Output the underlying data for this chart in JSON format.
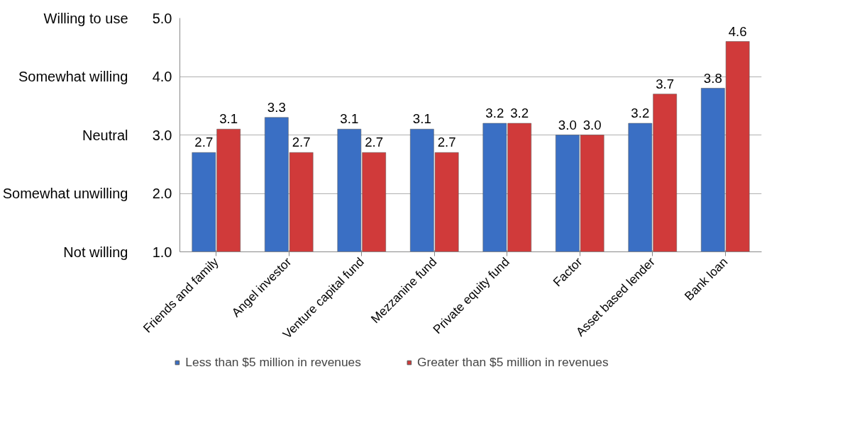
{
  "chart_data": {
    "type": "bar",
    "categories": [
      "Friends and family",
      "Angel investor",
      "Venture capital fund",
      "Mezzanine fund",
      "Private equity fund",
      "Factor",
      "Asset based lender",
      "Bank loan"
    ],
    "series": [
      {
        "name": "Less than $5 million in revenues",
        "color": "#3a6fc4",
        "values": [
          2.7,
          3.3,
          3.1,
          3.1,
          3.2,
          3.0,
          3.2,
          3.8
        ],
        "value_labels": [
          "2.7",
          "3.3",
          "3.1",
          "3.1",
          "3.2",
          "3.0",
          "3.2",
          "3.8"
        ]
      },
      {
        "name": "Greater than $5 million in revenues",
        "color": "#d03a3a",
        "values": [
          3.1,
          2.7,
          2.7,
          2.7,
          3.2,
          3.0,
          3.7,
          4.6
        ],
        "value_labels": [
          "3.1",
          "2.7",
          "2.7",
          "2.7",
          "3.2",
          "3.0",
          "3.7",
          "4.6"
        ]
      }
    ],
    "ylim": [
      1,
      5
    ],
    "yticks": [
      {
        "value": 1,
        "label": "1.0"
      },
      {
        "value": 2,
        "label": "2.0"
      },
      {
        "value": 3,
        "label": "3.0"
      },
      {
        "value": 4,
        "label": "4.0"
      },
      {
        "value": 5,
        "label": "5.0"
      }
    ],
    "annotations": [
      "Not willing",
      "Somewhat unwilling",
      "Neutral",
      "Somewhat willing",
      "Willing to use"
    ],
    "grid": "y",
    "legend": "bottom"
  }
}
